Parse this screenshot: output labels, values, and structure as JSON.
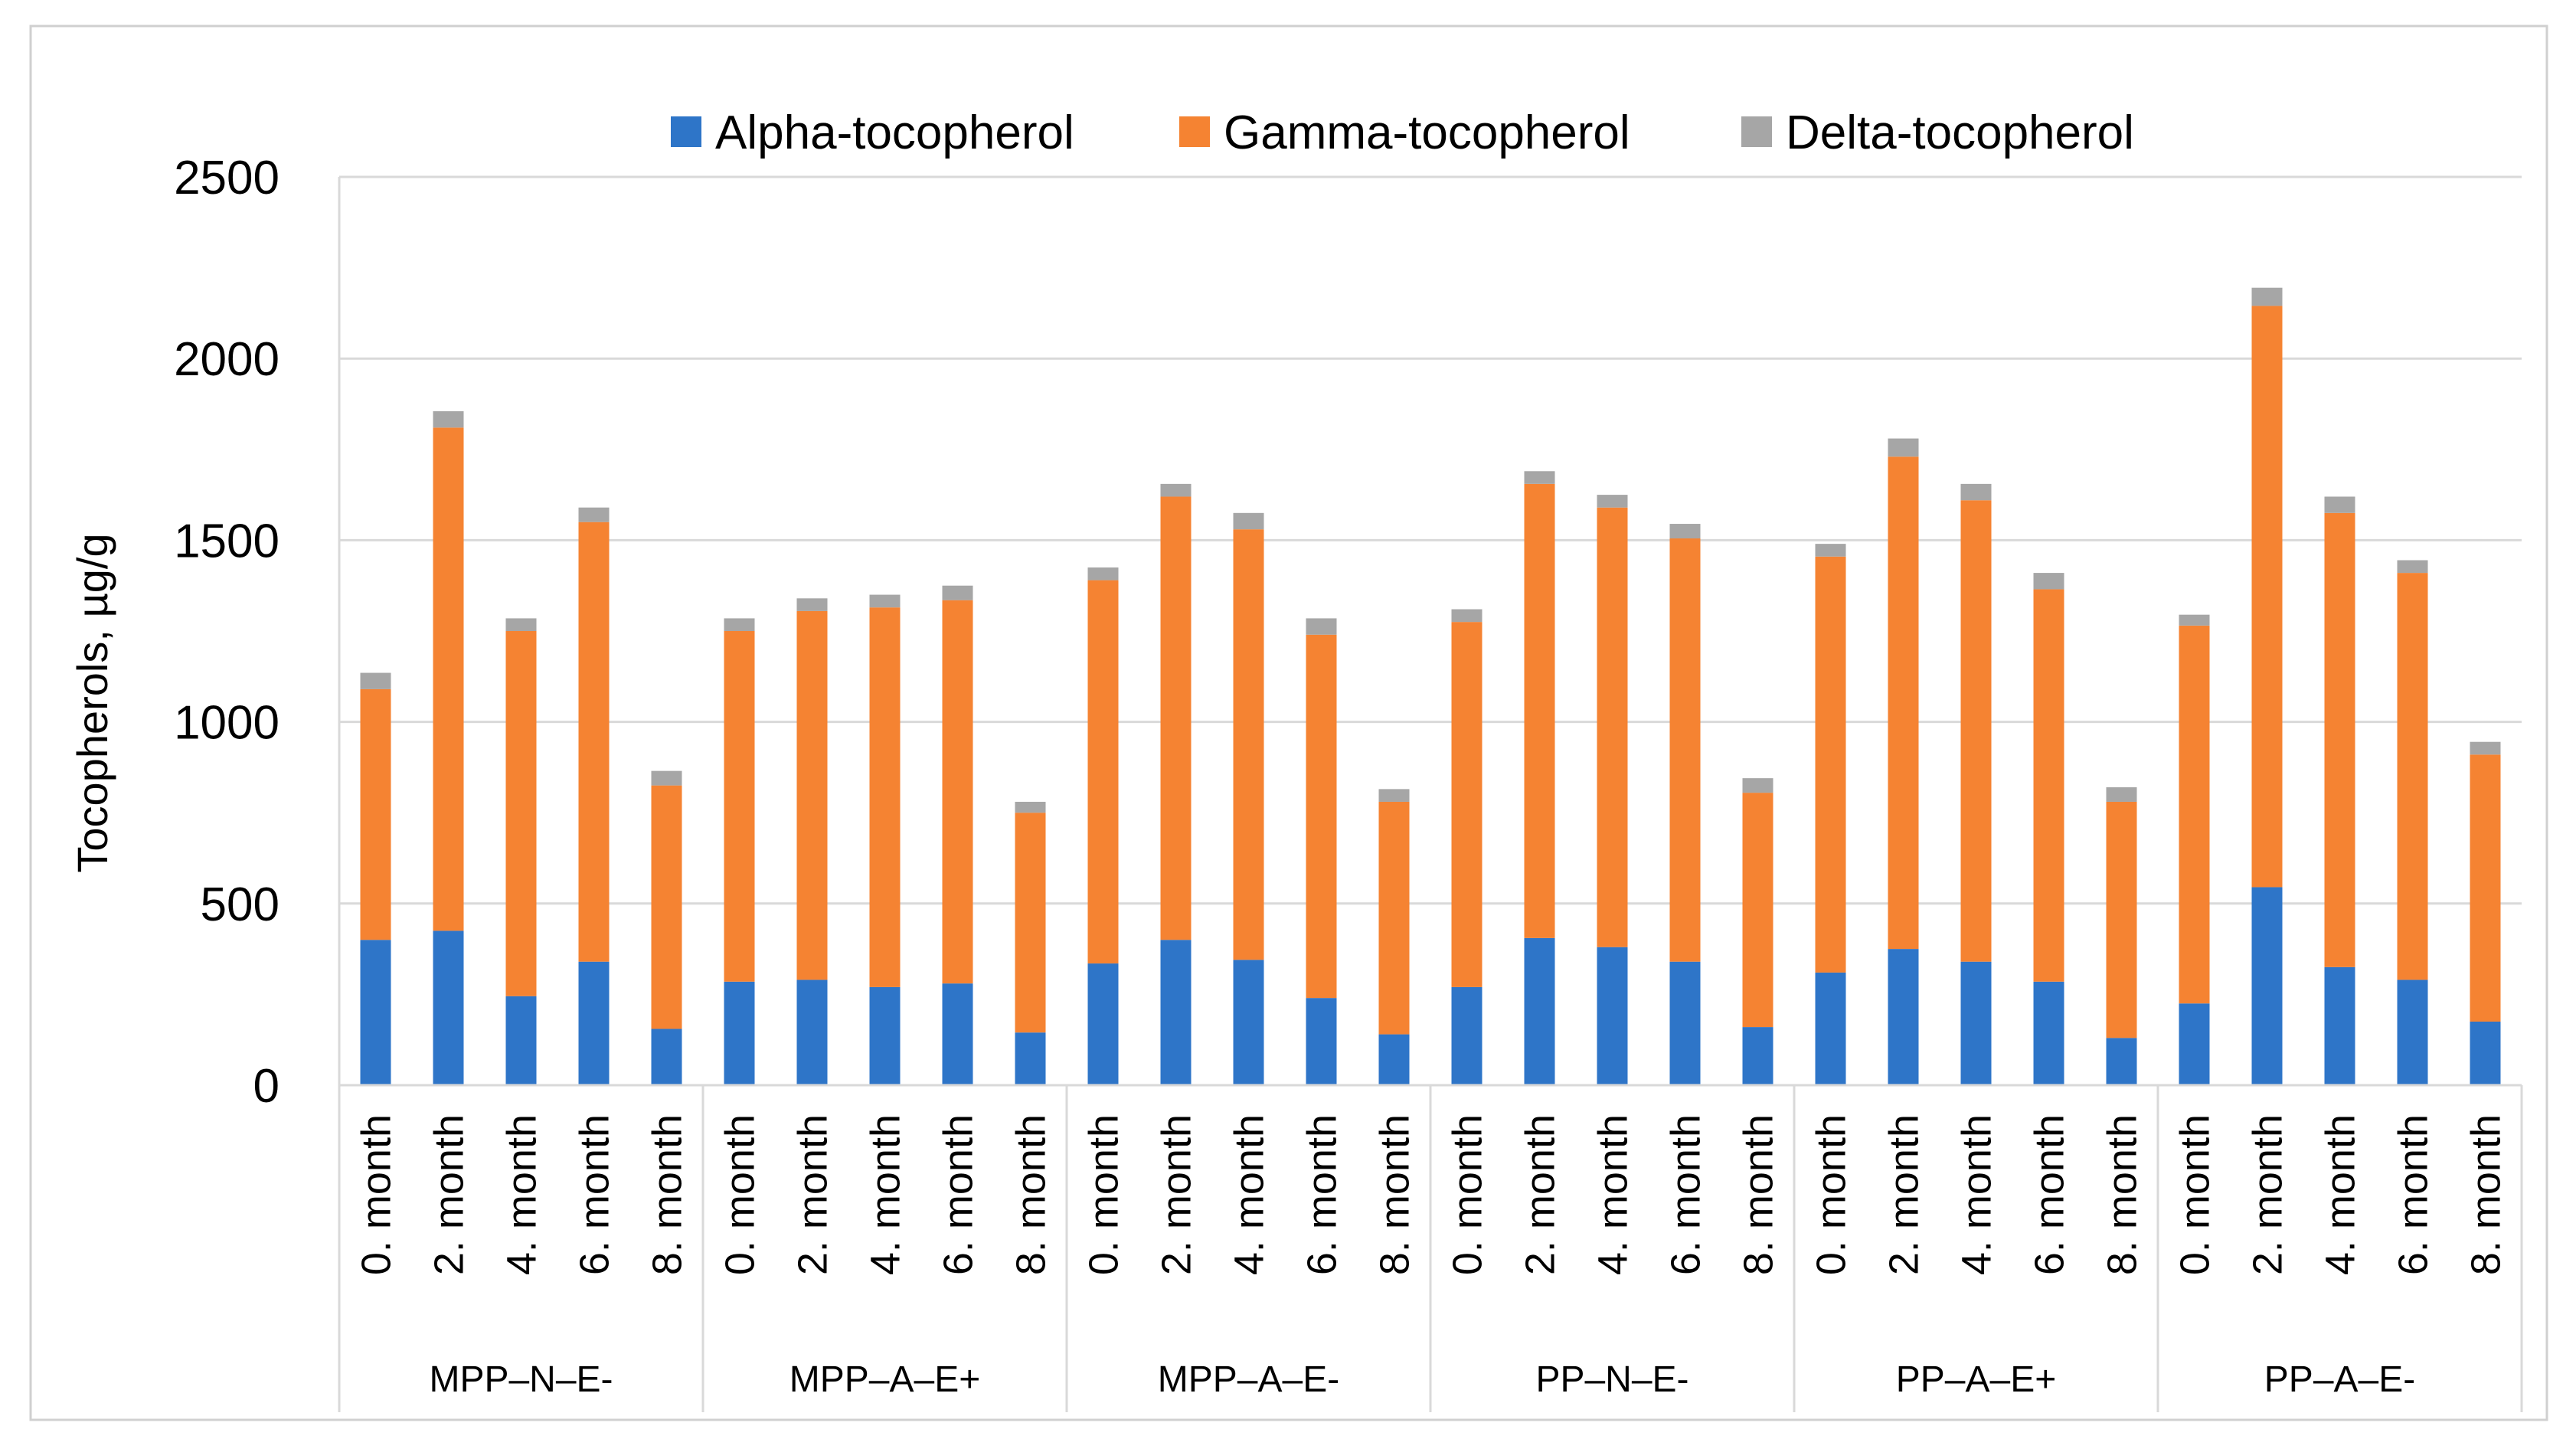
{
  "chart_data": {
    "type": "bar",
    "stacked": true,
    "title": "",
    "xlabel": "",
    "ylabel": "Tocopherols, µg/g",
    "ylim": [
      0,
      2500
    ],
    "yticks": [
      0,
      500,
      1000,
      1500,
      2000,
      2500
    ],
    "grid": true,
    "legend_position": "top",
    "groups": [
      "MPP–N–E-",
      "MPP–A–E+",
      "MPP–A–E-",
      "PP–N–E-",
      "PP–A–E+",
      "PP–A–E-"
    ],
    "subcategories": [
      "0. month",
      "2. month",
      "4. month",
      "6. month",
      "8. month"
    ],
    "series": [
      {
        "name": "Alpha-tocopherol",
        "color": "#2E75C8",
        "values": [
          400,
          425,
          245,
          340,
          155,
          285,
          290,
          270,
          280,
          145,
          335,
          400,
          345,
          240,
          140,
          270,
          405,
          380,
          340,
          160,
          310,
          375,
          340,
          285,
          130,
          225,
          545,
          325,
          290,
          175
        ]
      },
      {
        "name": "Gamma-tocopherol",
        "color": "#F58332",
        "values": [
          690,
          1385,
          1005,
          1210,
          670,
          965,
          1015,
          1045,
          1055,
          605,
          1055,
          1220,
          1185,
          1000,
          640,
          1005,
          1250,
          1210,
          1165,
          645,
          1145,
          1355,
          1270,
          1080,
          650,
          1040,
          1600,
          1250,
          1120,
          735
        ]
      },
      {
        "name": "Delta-tocopherol",
        "color": "#A6A6A6",
        "values": [
          45,
          45,
          35,
          40,
          40,
          35,
          35,
          35,
          40,
          30,
          35,
          35,
          45,
          45,
          35,
          35,
          35,
          35,
          40,
          40,
          35,
          50,
          45,
          45,
          40,
          30,
          50,
          45,
          35,
          35
        ]
      }
    ]
  }
}
